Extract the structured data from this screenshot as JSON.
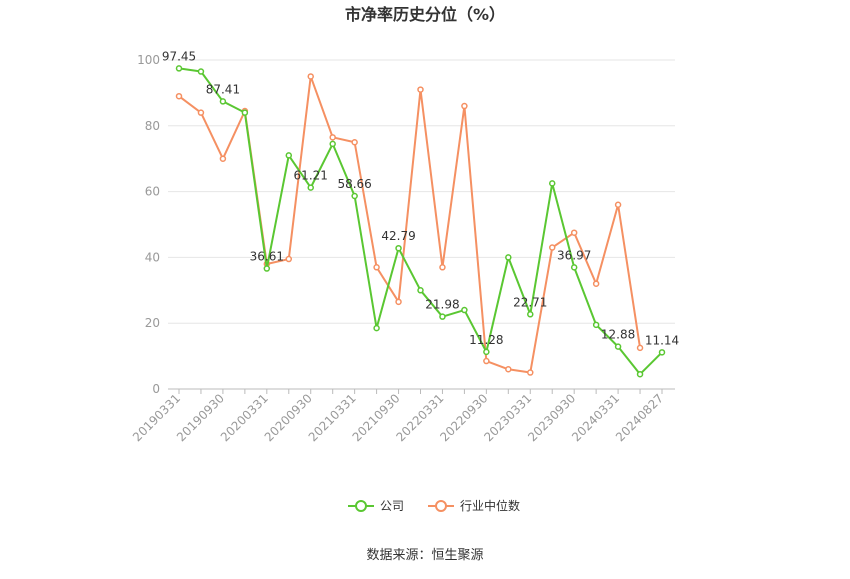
{
  "chart_data": {
    "type": "line",
    "title": "市净率历史分位（%）",
    "source": "数据来源：恒生聚源",
    "xlabel": "",
    "ylabel": "",
    "ylim": [
      0,
      100
    ],
    "yticks": [
      0,
      20,
      40,
      60,
      80,
      100
    ],
    "grid": true,
    "legend_position": "bottom-center",
    "x": [
      "20190331",
      "20190630",
      "20190930",
      "20191231",
      "20200331",
      "20200630",
      "20200930",
      "20201231",
      "20210331",
      "20210630",
      "20210930",
      "20211231",
      "20220331",
      "20220630",
      "20220930",
      "20221231",
      "20230331",
      "20230630",
      "20230930",
      "20231231",
      "20240331",
      "20240630",
      "20240827"
    ],
    "x_tick_labels": [
      "20190331",
      "20190930",
      "20200331",
      "20200930",
      "20210331",
      "20210930",
      "20220331",
      "20220930",
      "20230331",
      "20230930",
      "20240331",
      "20240827"
    ],
    "series": [
      {
        "name": "公司",
        "color": "#5ac732",
        "values": [
          97.45,
          96.5,
          87.41,
          84.0,
          36.61,
          71.0,
          61.21,
          74.5,
          58.66,
          18.5,
          42.79,
          30.0,
          21.98,
          24.0,
          11.28,
          40.0,
          22.71,
          62.5,
          36.97,
          19.5,
          12.88,
          4.5,
          11.14
        ],
        "data_labels": {
          "0": "97.45",
          "2": "87.41",
          "4": "36.61",
          "6": "61.21",
          "8": "58.66",
          "10": "42.79",
          "12": "21.98",
          "14": "11.28",
          "16": "22.71",
          "18": "36.97",
          "20": "12.88",
          "22": "11.14"
        }
      },
      {
        "name": "行业中位数",
        "color": "#f59062",
        "values": [
          89.0,
          84.0,
          70.0,
          84.5,
          38.0,
          39.5,
          95.0,
          76.5,
          75.0,
          37.0,
          26.5,
          91.0,
          37.0,
          86.0,
          8.5,
          6.0,
          5.0,
          43.0,
          47.5,
          32.0,
          56.0,
          12.5,
          null
        ]
      }
    ]
  }
}
